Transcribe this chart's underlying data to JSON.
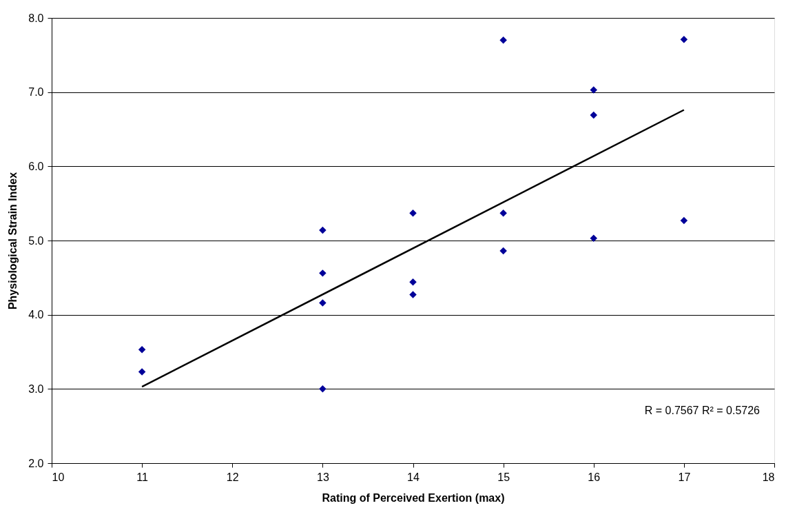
{
  "chart_data": {
    "type": "scatter",
    "xlabel": "Rating of Perceived Exertion (max)",
    "ylabel": "Physiological Strain Index",
    "series": [
      {
        "color": "#000099",
        "marker": "diamond",
        "x": [
          11,
          11,
          13,
          13,
          13,
          13,
          14,
          14,
          14,
          15,
          15,
          15,
          16,
          16,
          16,
          17,
          17
        ],
        "values": [
          3.53,
          3.23,
          5.14,
          4.56,
          4.16,
          3.0,
          5.37,
          4.44,
          4.27,
          7.7,
          5.37,
          4.86,
          7.03,
          6.69,
          5.03,
          7.71,
          5.27
        ]
      },
      {
        "type": "line",
        "color": "#000000",
        "line_style": "solid",
        "x": [
          11,
          17
        ],
        "values": [
          3.03,
          6.76
        ]
      }
    ],
    "xlim": [
      10,
      18
    ],
    "xticks": [
      10,
      11,
      12,
      13,
      14,
      15,
      16,
      17,
      18
    ],
    "ylim": [
      2.0,
      8.0
    ],
    "yticks": [
      {
        "value": 2,
        "label": "2.0"
      },
      {
        "value": 3,
        "label": "3.0"
      },
      {
        "value": 4,
        "label": "4.0"
      },
      {
        "value": 5,
        "label": "5.0"
      },
      {
        "value": 6,
        "label": "6.0"
      },
      {
        "value": 7,
        "label": "7.0"
      },
      {
        "value": 8,
        "label": "8.0"
      }
    ],
    "grid": "y",
    "annotations": [
      "R = 0.7567 R² = 0.5726"
    ]
  }
}
